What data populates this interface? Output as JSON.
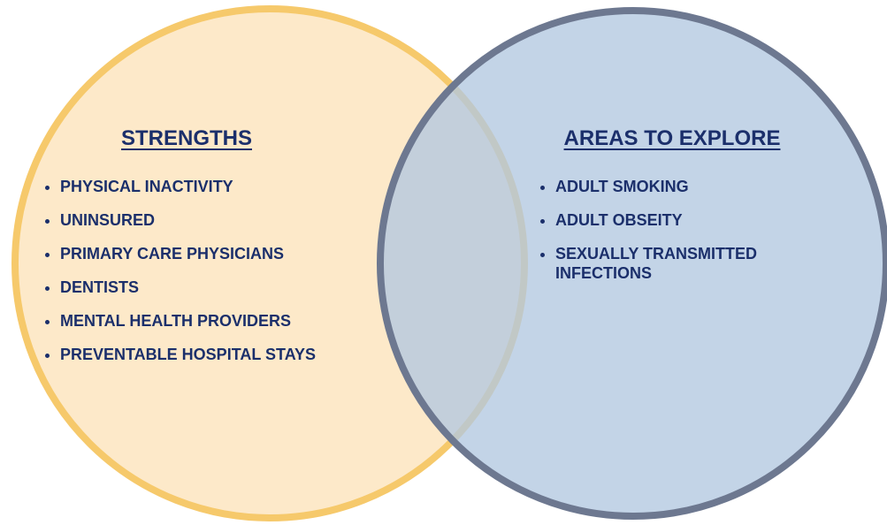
{
  "sets": [
    {
      "title": "STRENGTHS",
      "items": [
        "PHYSICAL INACTIVITY",
        "UNINSURED",
        "PRIMARY CARE PHYSICIANS",
        "DENTISTS",
        "MENTAL HEALTH PROVIDERS",
        "PREVENTABLE HOSPITAL STAYS"
      ]
    },
    {
      "title": "AREAS TO EXPLORE",
      "items": [
        "ADULT SMOKING",
        "ADULT OBSEITY",
        "SEXUALLY TRANSMITTED INFECTIONS"
      ]
    }
  ]
}
